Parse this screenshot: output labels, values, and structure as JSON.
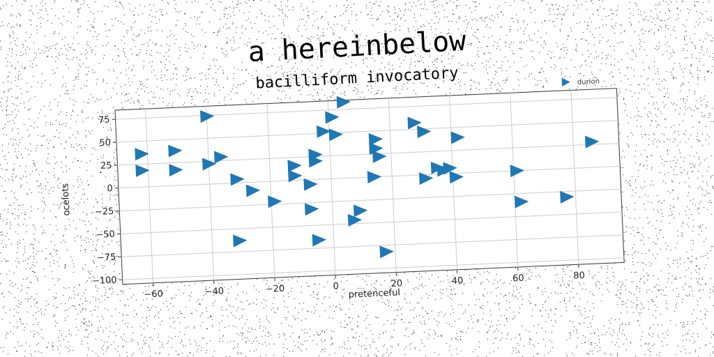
{
  "header": {
    "title": "a hereinbelow",
    "subtitle": "bacilliform invocatory"
  },
  "chart_data": {
    "type": "scatter",
    "title": "bacilliform invocatory",
    "xlabel": "pretenceful",
    "ylabel": "ocelots",
    "xlim": [
      -70,
      95
    ],
    "ylim": [
      -105,
      85
    ],
    "xticks": [
      -60,
      -40,
      -20,
      0,
      20,
      40,
      60,
      80
    ],
    "yticks": [
      75,
      50,
      25,
      0,
      -25,
      -50,
      -75,
      -100
    ],
    "grid": true,
    "legend_position": "top-right",
    "marker": "triangle-right",
    "color": "#1f77b4",
    "series": [
      {
        "name": "durion",
        "points": [
          [
            -62,
            36
          ],
          [
            -62,
            18
          ],
          [
            -51,
            38
          ],
          [
            -51,
            17
          ],
          [
            -40,
            74
          ],
          [
            -40,
            22
          ],
          [
            -36,
            29
          ],
          [
            -31,
            4
          ],
          [
            -26,
            -9
          ],
          [
            -19,
            -22
          ],
          [
            -12,
            16
          ],
          [
            -12,
            5
          ],
          [
            -7,
            -5
          ],
          [
            -7,
            -32
          ],
          [
            -5,
            27
          ],
          [
            -5,
            20
          ],
          [
            -2,
            52
          ],
          [
            2,
            48
          ],
          [
            1,
            67
          ],
          [
            5,
            83
          ],
          [
            7,
            -46
          ],
          [
            9,
            -36
          ],
          [
            -5,
            -66
          ],
          [
            15,
            41
          ],
          [
            15,
            31
          ],
          [
            16,
            22
          ],
          [
            14,
            0
          ],
          [
            17,
            -82
          ],
          [
            28,
            57
          ],
          [
            31,
            47
          ],
          [
            31,
            -4
          ],
          [
            35,
            7
          ],
          [
            37,
            4
          ],
          [
            39,
            6
          ],
          [
            41,
            -4
          ],
          [
            42,
            39
          ],
          [
            61,
            0
          ],
          [
            62,
            -34
          ],
          [
            77,
            -31
          ],
          [
            86,
            28
          ],
          [
            -31,
            -63
          ]
        ]
      }
    ]
  }
}
